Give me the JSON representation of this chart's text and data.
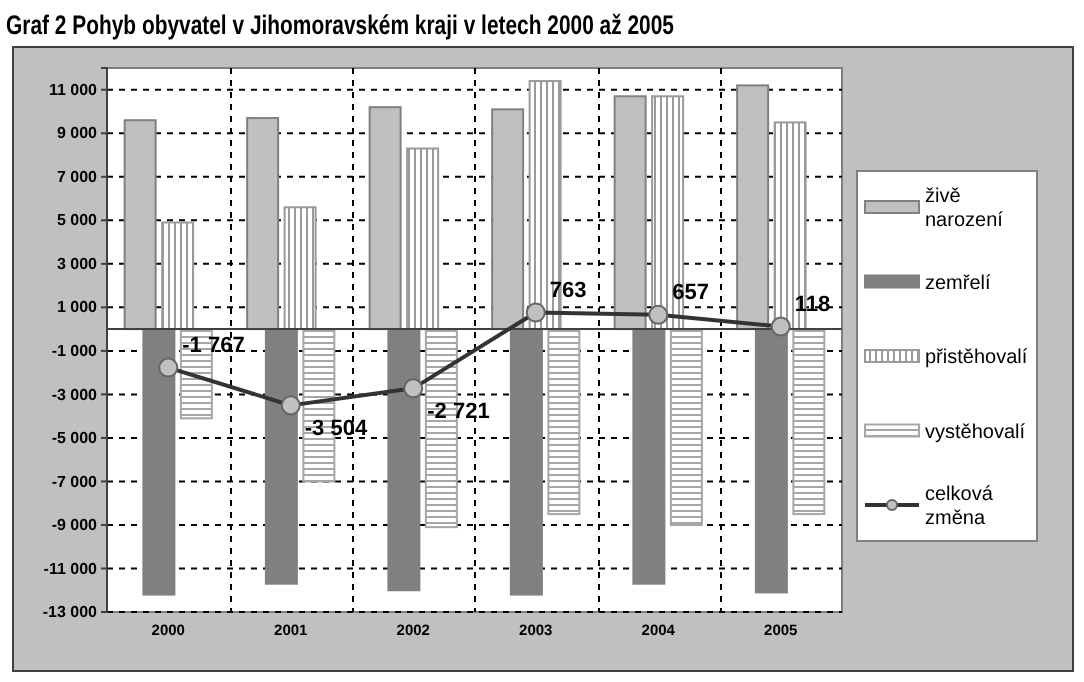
{
  "chart_data": {
    "type": "bar",
    "title": "Graf 2 Pohyb obyvatel v Jihomoravském kraji v letech 2000 až 2005",
    "categories": [
      "2000",
      "2001",
      "2002",
      "2003",
      "2004",
      "2005"
    ],
    "series": [
      {
        "name": "živě narození",
        "color": "#c0c0c0",
        "values": [
          9600,
          9700,
          10200,
          10100,
          10700,
          11200
        ]
      },
      {
        "name": "zemřelí",
        "color": "#808080",
        "values": [
          -12200,
          -11700,
          -12000,
          -12200,
          -11700,
          -12100
        ]
      },
      {
        "name": "přistěhovalí",
        "color": "#9a9a9a",
        "values": [
          4900,
          5600,
          8300,
          11400,
          10700,
          9500
        ]
      },
      {
        "name": "vystěhovalí",
        "color": "#a6a6a6",
        "values": [
          -4100,
          -7000,
          -9100,
          -8500,
          -9000,
          -8500
        ]
      },
      {
        "name": "celková změna",
        "type": "line",
        "color": "#333333",
        "values": [
          -1767,
          -3504,
          -2721,
          763,
          657,
          118
        ],
        "value_labels": [
          "-1 767",
          "-3 504",
          "-2 721",
          "763",
          "657",
          "118"
        ]
      }
    ],
    "ylim": [
      -13000,
      12000
    ],
    "yticks": [
      {
        "value": -13000,
        "label": "-13 000"
      },
      {
        "value": -11000,
        "label": "-11 000"
      },
      {
        "value": -9000,
        "label": "-9 000"
      },
      {
        "value": -7000,
        "label": "-7 000"
      },
      {
        "value": -5000,
        "label": "-5 000"
      },
      {
        "value": -3000,
        "label": "-3 000"
      },
      {
        "value": -1000,
        "label": "-1 000"
      },
      {
        "value": 1000,
        "label": "1 000"
      },
      {
        "value": 3000,
        "label": "3 000"
      },
      {
        "value": 5000,
        "label": "5 000"
      },
      {
        "value": 7000,
        "label": "7 000"
      },
      {
        "value": 9000,
        "label": "9 000"
      },
      {
        "value": 11000,
        "label": "11 000"
      }
    ],
    "grid": true,
    "legend": "right",
    "marker": "circle"
  }
}
